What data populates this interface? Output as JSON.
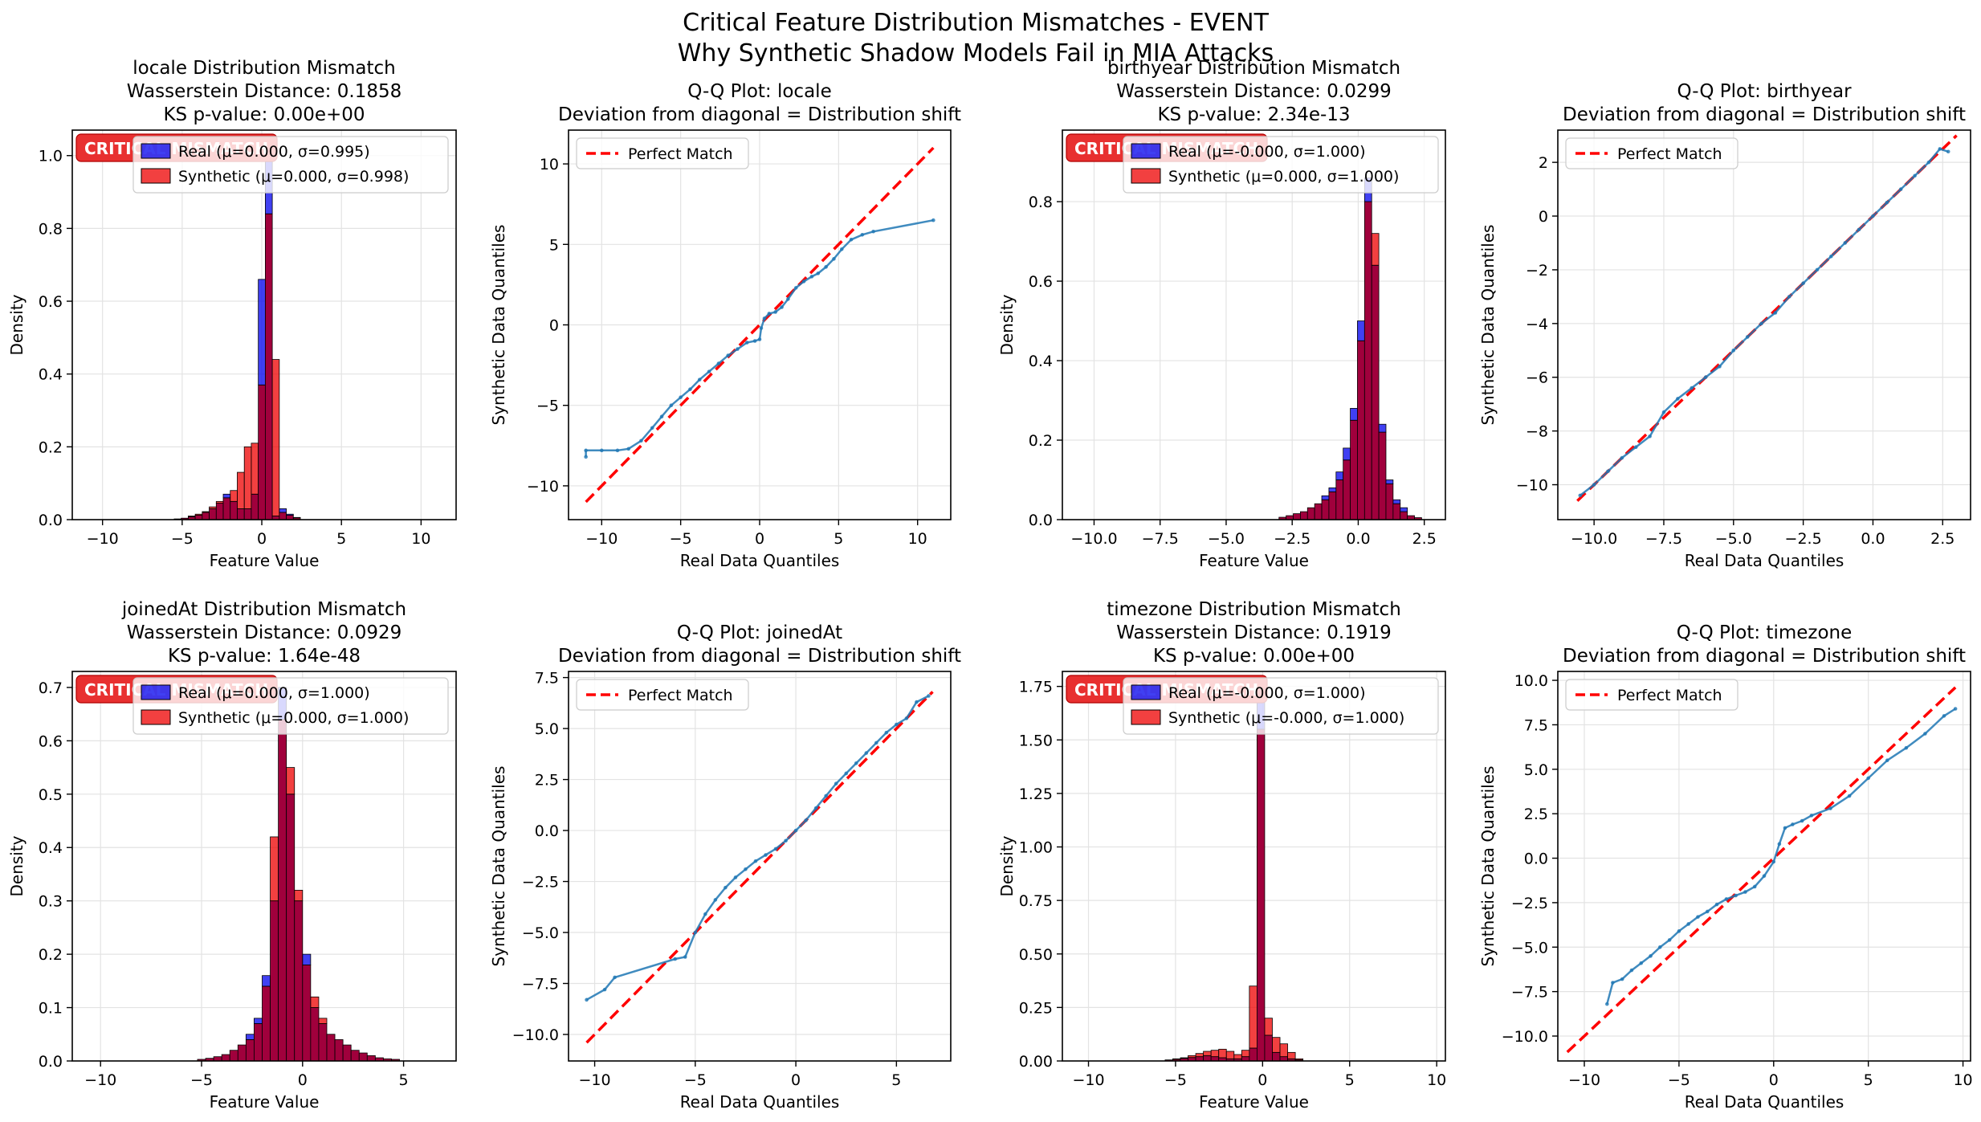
{
  "figure": {
    "suptitle_line1": "Critical Feature Distribution Mismatches - EVENT",
    "suptitle_line2": "Why Synthetic Shadow Models Fail in MIA Attacks"
  },
  "colors": {
    "real": "#0000ee",
    "synthetic": "#ee0000",
    "overlap": "#a0003c",
    "qq_points": "#1f77b4",
    "diagonal": "#ff0000",
    "critical_badge": "#e83030"
  },
  "chart_data": [
    {
      "type": "bar",
      "title": [
        "locale Distribution Mismatch",
        "Wasserstein Distance: 0.1858",
        "KS p-value: 0.00e+00"
      ],
      "badge": "CRITICAL MISMATCH",
      "xlabel": "Feature Value",
      "ylabel": "Density",
      "xlim": [
        -11.9,
        12.2
      ],
      "ylim": [
        0,
        1.07
      ],
      "xticks": [
        -10,
        -5,
        0,
        5,
        10
      ],
      "yticks": [
        0.0,
        0.2,
        0.4,
        0.6,
        0.8,
        1.0
      ],
      "legend": [
        "Real (μ=0.000, σ=0.995)",
        "Synthetic (μ=0.000, σ=0.998)"
      ],
      "legend_position": "upper center",
      "grid": true,
      "bin_start": -5.5,
      "bin_width": 0.44,
      "series": [
        {
          "name": "Real (μ=0.000, σ=0.995)",
          "values": [
            0.002,
            0.004,
            0.008,
            0.012,
            0.02,
            0.03,
            0.045,
            0.07,
            0.05,
            0.03,
            0.03,
            0.07,
            0.66,
            1.0,
            0.01,
            0.03,
            0.015,
            0.006
          ]
        },
        {
          "name": "Synthetic (μ=0.000, σ=0.998)",
          "values": [
            0.002,
            0.004,
            0.01,
            0.015,
            0.022,
            0.035,
            0.05,
            0.06,
            0.08,
            0.13,
            0.2,
            0.21,
            0.37,
            0.84,
            0.44,
            0.02,
            0.012,
            0.005
          ]
        }
      ]
    },
    {
      "type": "scatter",
      "title": [
        "Q-Q Plot: locale",
        "Deviation from diagonal = Distribution shift"
      ],
      "xlabel": "Real Data Quantiles",
      "ylabel": "Synthetic Data Quantiles",
      "xlim": [
        -12.1,
        12.1
      ],
      "ylim": [
        -12.1,
        12.1
      ],
      "xticks": [
        -10,
        -5,
        0,
        5,
        10
      ],
      "yticks": [
        -10,
        -5,
        0,
        5,
        10
      ],
      "legend": [
        "Perfect Match"
      ],
      "legend_position": "upper left",
      "grid": true,
      "diagonal": [
        -11,
        11
      ],
      "points": [
        [
          -11,
          -8.2
        ],
        [
          -11,
          -7.8
        ],
        [
          -10,
          -7.8
        ],
        [
          -9,
          -7.8
        ],
        [
          -8.3,
          -7.7
        ],
        [
          -7.5,
          -7.2
        ],
        [
          -6.8,
          -6.4
        ],
        [
          -6.2,
          -5.7
        ],
        [
          -5.6,
          -5.0
        ],
        [
          -5.0,
          -4.5
        ],
        [
          -4.4,
          -4.0
        ],
        [
          -3.8,
          -3.4
        ],
        [
          -3.2,
          -2.9
        ],
        [
          -2.6,
          -2.4
        ],
        [
          -2.0,
          -1.9
        ],
        [
          -1.4,
          -1.5
        ],
        [
          -0.8,
          -1.1
        ],
        [
          -0.3,
          -1.0
        ],
        [
          0,
          -0.9
        ],
        [
          0.1,
          -0.2
        ],
        [
          0.3,
          0.4
        ],
        [
          0.6,
          0.7
        ],
        [
          1.0,
          0.8
        ],
        [
          1.4,
          1.1
        ],
        [
          1.8,
          1.6
        ],
        [
          2.3,
          2.3
        ],
        [
          2.8,
          2.7
        ],
        [
          3.3,
          3.0
        ],
        [
          3.7,
          3.2
        ],
        [
          4.2,
          3.6
        ],
        [
          4.7,
          4.1
        ],
        [
          5.2,
          4.7
        ],
        [
          5.8,
          5.3
        ],
        [
          6.5,
          5.6
        ],
        [
          7.2,
          5.8
        ],
        [
          11,
          6.5
        ]
      ]
    },
    {
      "type": "bar",
      "title": [
        "birthyear Distribution Mismatch",
        "Wasserstein Distance: 0.0299",
        "KS p-value: 2.34e-13"
      ],
      "badge": "CRITICAL MISMATCH",
      "xlabel": "Feature Value",
      "ylabel": "Density",
      "xlim": [
        -11.2,
        3.3
      ],
      "ylim": [
        0,
        0.98
      ],
      "xticks": [
        -10.0,
        -7.5,
        -5.0,
        -2.5,
        0.0,
        2.5
      ],
      "yticks": [
        0.0,
        0.2,
        0.4,
        0.6,
        0.8
      ],
      "legend": [
        "Real (μ=-0.000, σ=1.000)",
        "Synthetic (μ=0.000, σ=1.000)"
      ],
      "legend_position": "upper center",
      "grid": true,
      "bin_start": -3.0,
      "bin_width": 0.27,
      "series": [
        {
          "name": "Real (μ=-0.000, σ=1.000)",
          "values": [
            0.006,
            0.01,
            0.015,
            0.02,
            0.03,
            0.04,
            0.06,
            0.08,
            0.12,
            0.18,
            0.28,
            0.5,
            0.86,
            0.64,
            0.24,
            0.1,
            0.05,
            0.03,
            0.01,
            0.005
          ]
        },
        {
          "name": "Synthetic (μ=0.000, σ=1.000)",
          "values": [
            0.006,
            0.01,
            0.015,
            0.02,
            0.03,
            0.04,
            0.05,
            0.07,
            0.1,
            0.15,
            0.25,
            0.45,
            0.8,
            0.72,
            0.22,
            0.09,
            0.04,
            0.02,
            0.01,
            0.005
          ]
        }
      ]
    },
    {
      "type": "scatter",
      "title": [
        "Q-Q Plot: birthyear",
        "Deviation from diagonal = Distribution shift"
      ],
      "xlabel": "Real Data Quantiles",
      "ylabel": "Synthetic Data Quantiles",
      "xlim": [
        -11.3,
        3.5
      ],
      "ylim": [
        -11.3,
        3.2
      ],
      "xticks": [
        -10.0,
        -7.5,
        -5.0,
        -2.5,
        0.0,
        2.5
      ],
      "yticks": [
        -10,
        -8,
        -6,
        -4,
        -2,
        0,
        2
      ],
      "legend": [
        "Perfect Match"
      ],
      "legend_position": "upper left",
      "grid": true,
      "diagonal": [
        -10.6,
        3.0
      ],
      "points": [
        [
          -10.5,
          -10.4
        ],
        [
          -10.0,
          -10.0
        ],
        [
          -9.5,
          -9.5
        ],
        [
          -9.0,
          -9.0
        ],
        [
          -8.5,
          -8.6
        ],
        [
          -8.0,
          -8.2
        ],
        [
          -7.5,
          -7.3
        ],
        [
          -7.0,
          -6.8
        ],
        [
          -6.5,
          -6.4
        ],
        [
          -6.0,
          -6.0
        ],
        [
          -5.5,
          -5.6
        ],
        [
          -5.0,
          -5.0
        ],
        [
          -4.5,
          -4.5
        ],
        [
          -4.0,
          -4.0
        ],
        [
          -3.5,
          -3.6
        ],
        [
          -3.0,
          -3.0
        ],
        [
          -2.5,
          -2.5
        ],
        [
          -2.0,
          -2.0
        ],
        [
          -1.5,
          -1.5
        ],
        [
          -1.0,
          -1.0
        ],
        [
          -0.5,
          -0.5
        ],
        [
          0.0,
          0.0
        ],
        [
          0.5,
          0.5
        ],
        [
          1.0,
          1.0
        ],
        [
          1.5,
          1.5
        ],
        [
          2.0,
          2.0
        ],
        [
          2.4,
          2.5
        ],
        [
          2.7,
          2.4
        ]
      ]
    },
    {
      "type": "bar",
      "title": [
        "joinedAt Distribution Mismatch",
        "Wasserstein Distance: 0.0929",
        "KS p-value: 1.64e-48"
      ],
      "badge": "CRITICAL MISMATCH",
      "xlabel": "Feature Value",
      "ylabel": "Density",
      "xlim": [
        -11.4,
        7.6
      ],
      "ylim": [
        0,
        0.73
      ],
      "xticks": [
        -10,
        -5,
        0,
        5
      ],
      "yticks": [
        0.0,
        0.1,
        0.2,
        0.3,
        0.4,
        0.5,
        0.6,
        0.7
      ],
      "legend": [
        "Real (μ=0.000, σ=1.000)",
        "Synthetic (μ=0.000, σ=1.000)"
      ],
      "legend_position": "upper center",
      "grid": true,
      "bin_start": -5.2,
      "bin_width": 0.4,
      "series": [
        {
          "name": "Real (μ=0.000, σ=1.000)",
          "values": [
            0.003,
            0.005,
            0.008,
            0.012,
            0.02,
            0.03,
            0.05,
            0.08,
            0.16,
            0.3,
            0.7,
            0.5,
            0.3,
            0.2,
            0.1,
            0.07,
            0.05,
            0.04,
            0.03,
            0.02,
            0.015,
            0.01,
            0.006,
            0.004,
            0.003
          ]
        },
        {
          "name": "Synthetic (μ=0.000, σ=1.000)",
          "values": [
            0.003,
            0.005,
            0.008,
            0.012,
            0.02,
            0.03,
            0.04,
            0.07,
            0.14,
            0.42,
            0.64,
            0.55,
            0.32,
            0.18,
            0.12,
            0.08,
            0.05,
            0.04,
            0.03,
            0.02,
            0.015,
            0.01,
            0.006,
            0.004,
            0.003
          ]
        }
      ]
    },
    {
      "type": "scatter",
      "title": [
        "Q-Q Plot: joinedAt",
        "Deviation from diagonal = Distribution shift"
      ],
      "xlabel": "Real Data Quantiles",
      "ylabel": "Synthetic Data Quantiles",
      "xlim": [
        -11.3,
        7.7
      ],
      "ylim": [
        -11.3,
        7.8
      ],
      "xticks": [
        -10,
        -5,
        0,
        5
      ],
      "yticks": [
        -10.0,
        -7.5,
        -5.0,
        -2.5,
        0.0,
        2.5,
        5.0,
        7.5
      ],
      "legend": [
        "Perfect Match"
      ],
      "legend_position": "upper left",
      "grid": true,
      "diagonal": [
        -10.4,
        6.8
      ],
      "points": [
        [
          -10.4,
          -8.3
        ],
        [
          -9.5,
          -7.8
        ],
        [
          -9.0,
          -7.2
        ],
        [
          -6.0,
          -6.3
        ],
        [
          -5.5,
          -6.2
        ],
        [
          -5.0,
          -5.0
        ],
        [
          -4.5,
          -4.1
        ],
        [
          -4.0,
          -3.4
        ],
        [
          -3.5,
          -2.8
        ],
        [
          -3.0,
          -2.3
        ],
        [
          -2.5,
          -1.9
        ],
        [
          -2.0,
          -1.5
        ],
        [
          -1.5,
          -1.2
        ],
        [
          -1.0,
          -0.9
        ],
        [
          -0.5,
          -0.5
        ],
        [
          0.0,
          0.0
        ],
        [
          0.5,
          0.5
        ],
        [
          1.0,
          1.1
        ],
        [
          1.5,
          1.7
        ],
        [
          2.0,
          2.3
        ],
        [
          2.5,
          2.8
        ],
        [
          3.0,
          3.3
        ],
        [
          3.5,
          3.8
        ],
        [
          4.0,
          4.3
        ],
        [
          4.5,
          4.8
        ],
        [
          5.0,
          5.2
        ],
        [
          5.5,
          5.5
        ],
        [
          6.0,
          6.3
        ],
        [
          6.6,
          6.6
        ]
      ]
    },
    {
      "type": "bar",
      "title": [
        "timezone Distribution Mismatch",
        "Wasserstein Distance: 0.1919",
        "KS p-value: 0.00e+00"
      ],
      "badge": "CRITICAL MISMATCH",
      "xlabel": "Feature Value",
      "ylabel": "Density",
      "xlim": [
        -11.5,
        10.5
      ],
      "ylim": [
        0,
        1.82
      ],
      "xticks": [
        -10,
        -5,
        0,
        5,
        10
      ],
      "yticks": [
        0.0,
        0.25,
        0.5,
        0.75,
        1.0,
        1.25,
        1.5,
        1.75
      ],
      "legend": [
        "Real (μ=-0.000, σ=1.000)",
        "Synthetic (μ=-0.000, σ=1.000)"
      ],
      "legend_position": "upper center",
      "grid": true,
      "bin_start": -5.6,
      "bin_width": 0.44,
      "series": [
        {
          "name": "Real (μ=-0.000, σ=1.000)",
          "values": [
            0.005,
            0.008,
            0.012,
            0.016,
            0.02,
            0.025,
            0.02,
            0.015,
            0.01,
            0.01,
            0.02,
            0.06,
            1.7,
            0.12,
            0.04,
            0.02,
            0.01,
            0.005
          ]
        },
        {
          "name": "Synthetic (μ=-0.000, σ=1.000)",
          "values": [
            0.005,
            0.01,
            0.015,
            0.025,
            0.035,
            0.045,
            0.05,
            0.055,
            0.045,
            0.03,
            0.05,
            0.35,
            1.55,
            0.2,
            0.11,
            0.08,
            0.04,
            0.01
          ]
        }
      ]
    },
    {
      "type": "scatter",
      "title": [
        "Q-Q Plot: timezone",
        "Deviation from diagonal = Distribution shift"
      ],
      "xlabel": "Real Data Quantiles",
      "ylabel": "Synthetic Data Quantiles",
      "xlim": [
        -11.4,
        10.4
      ],
      "ylim": [
        -11.4,
        10.5
      ],
      "xticks": [
        -10,
        -5,
        0,
        5,
        10
      ],
      "yticks": [
        -10.0,
        -7.5,
        -5.0,
        -2.5,
        0.0,
        2.5,
        5.0,
        7.5,
        10.0
      ],
      "legend": [
        "Perfect Match"
      ],
      "legend_position": "upper left",
      "grid": true,
      "diagonal": [
        -10.9,
        9.6
      ],
      "points": [
        [
          -8.8,
          -8.2
        ],
        [
          -8.5,
          -7.0
        ],
        [
          -8.0,
          -6.8
        ],
        [
          -7.5,
          -6.3
        ],
        [
          -7.0,
          -5.9
        ],
        [
          -6.5,
          -5.5
        ],
        [
          -6.0,
          -5.0
        ],
        [
          -5.5,
          -4.6
        ],
        [
          -5.0,
          -4.1
        ],
        [
          -4.5,
          -3.7
        ],
        [
          -4.0,
          -3.3
        ],
        [
          -3.5,
          -3.0
        ],
        [
          -3.0,
          -2.6
        ],
        [
          -2.5,
          -2.3
        ],
        [
          -2.0,
          -2.1
        ],
        [
          -1.5,
          -1.9
        ],
        [
          -1.0,
          -1.6
        ],
        [
          -0.5,
          -1.0
        ],
        [
          0.0,
          -0.2
        ],
        [
          0.3,
          0.8
        ],
        [
          0.6,
          1.7
        ],
        [
          1.0,
          1.9
        ],
        [
          1.5,
          2.1
        ],
        [
          2.0,
          2.4
        ],
        [
          3.0,
          2.8
        ],
        [
          4.0,
          3.5
        ],
        [
          5.0,
          4.5
        ],
        [
          6.0,
          5.5
        ],
        [
          7.0,
          6.2
        ],
        [
          8.0,
          7.0
        ],
        [
          9.0,
          8.0
        ],
        [
          9.6,
          8.4
        ]
      ]
    }
  ]
}
